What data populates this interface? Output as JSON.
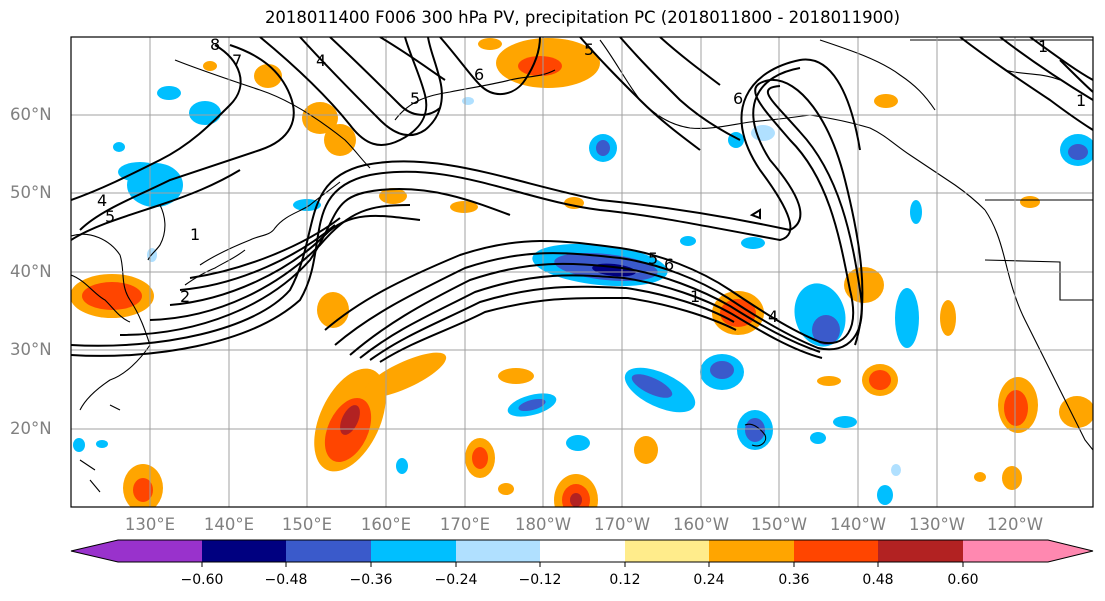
{
  "title": "2018011400 F006 300 hPa PV, precipitation PC (2018011800 - 2018011900)",
  "lat_labels": [
    "60°N",
    "50°N",
    "40°N",
    "30°N",
    "20°N"
  ],
  "lon_labels": [
    "130°E",
    "140°E",
    "150°E",
    "160°E",
    "170°E",
    "180°W",
    "170°W",
    "160°W",
    "150°W",
    "140°W",
    "130°W",
    "120°W"
  ],
  "colorbar": {
    "ticks": [
      "−0.60",
      "−0.48",
      "−0.36",
      "−0.24",
      "−0.12",
      "0.12",
      "0.24",
      "0.36",
      "0.48",
      "0.60"
    ],
    "colors": [
      "#9932cc",
      "#000080",
      "#3a5acb",
      "#00bfff",
      "#b0e0ff",
      "#ffffff",
      "#ffec8b",
      "#ffa500",
      "#ff4500",
      "#b22222",
      "#ff88b0"
    ]
  },
  "contour_labels": [
    "8",
    "7",
    "6",
    "5",
    "4",
    "4",
    "5",
    "1",
    "1",
    "6",
    "5",
    "1",
    "2",
    "4",
    "6",
    "5",
    "1"
  ]
}
